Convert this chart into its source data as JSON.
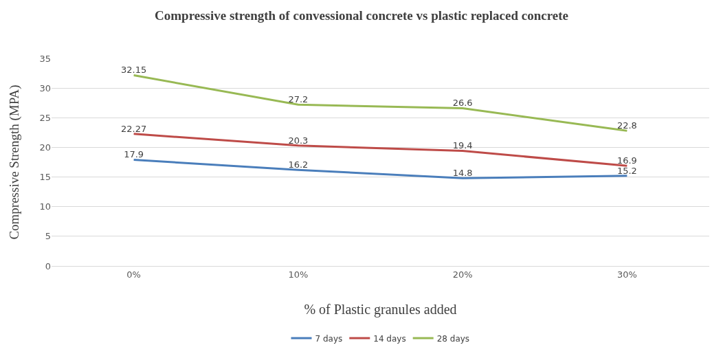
{
  "chart_data": {
    "type": "line",
    "title": "Compressive strength of convessional concrete vs plastic replaced concrete",
    "xlabel": "% of Plastic granules added",
    "ylabel": "Compressive Strength (MPA)",
    "categories": [
      "0%",
      "10%",
      "20%",
      "30%"
    ],
    "series": [
      {
        "name": "7 days",
        "color": "#4a7ebb",
        "values": [
          17.9,
          16.2,
          14.8,
          15.2
        ]
      },
      {
        "name": "14 days",
        "color": "#be4b48",
        "values": [
          22.27,
          20.3,
          19.4,
          16.9
        ]
      },
      {
        "name": "28 days",
        "color": "#98b954",
        "values": [
          32.15,
          27.2,
          26.6,
          22.8
        ]
      }
    ],
    "ylim": [
      0,
      35
    ],
    "yticks": [
      0,
      5,
      10,
      15,
      20,
      25,
      30,
      35
    ],
    "grid": "y",
    "legend": "bottom",
    "marker": "none",
    "line_style": "solid",
    "data_labels": true
  }
}
